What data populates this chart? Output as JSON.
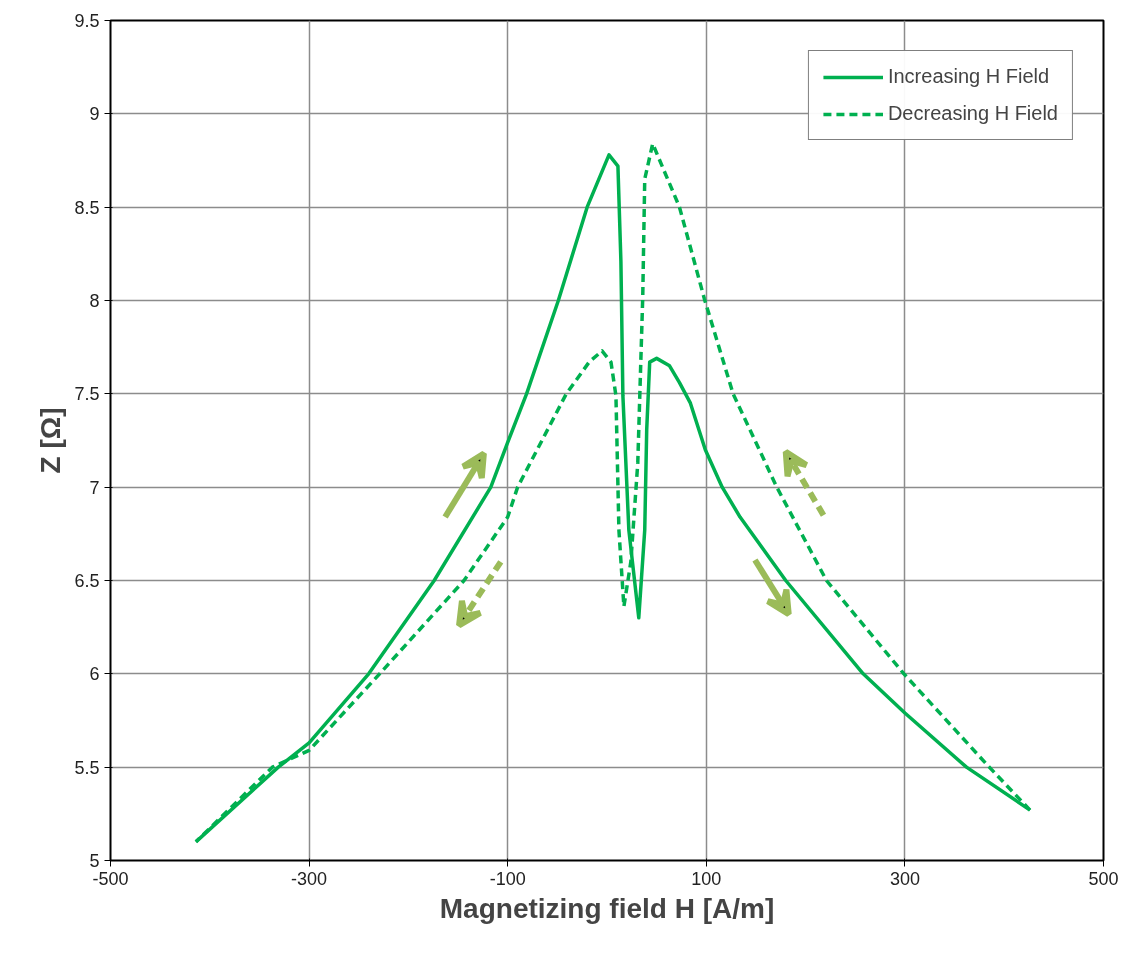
{
  "chart_data": {
    "type": "line",
    "xlabel": "Magnetizing field H [A/m]",
    "ylabel": "Z [Ω]",
    "xlim": [
      -500,
      500
    ],
    "ylim": [
      5,
      9.5
    ],
    "xticks": [
      -500,
      -300,
      -100,
      100,
      300,
      500
    ],
    "yticks": [
      5,
      5.5,
      6,
      6.5,
      7,
      7.5,
      8,
      8.5,
      9,
      9.5
    ],
    "grid": true,
    "legend": "top right",
    "series": [
      {
        "name": "Increasing H Field",
        "color": "#00b050",
        "line_style": "solid",
        "x": [
          -414,
          -331,
          -300,
          -240,
          -174,
          -117,
          -100,
          -81,
          -49,
          -20,
          2,
          11,
          14,
          16,
          22,
          32,
          38,
          40,
          43,
          50,
          63,
          73,
          84,
          99,
          116,
          134,
          180,
          258,
          300,
          362,
          426
        ],
        "values": [
          5.1,
          5.5,
          5.63,
          6.0,
          6.5,
          7.0,
          7.24,
          7.5,
          8.0,
          8.5,
          8.78,
          8.72,
          8.21,
          7.49,
          6.77,
          6.3,
          6.77,
          7.31,
          7.67,
          7.69,
          7.65,
          7.56,
          7.45,
          7.2,
          7.0,
          6.84,
          6.5,
          6.0,
          5.79,
          5.5,
          5.27
        ]
      },
      {
        "name": "Decreasing H Field",
        "color": "#00b050",
        "line_style": "dashed",
        "x": [
          426,
          385,
          299,
          221,
          171,
          127,
          98,
          73,
          46,
          38,
          36,
          31,
          24,
          17,
          12,
          9,
          4,
          -5,
          -18,
          -41,
          -90,
          -100,
          -144,
          -229,
          -300,
          -337,
          -414
        ],
        "values": [
          5.27,
          5.5,
          6.0,
          6.5,
          7.0,
          7.5,
          8.01,
          8.5,
          8.84,
          8.65,
          8.02,
          7.13,
          6.6,
          6.36,
          6.77,
          7.49,
          7.67,
          7.73,
          7.67,
          7.5,
          7.0,
          6.84,
          6.5,
          6.0,
          5.59,
          5.5,
          5.1
        ]
      }
    ]
  }
}
